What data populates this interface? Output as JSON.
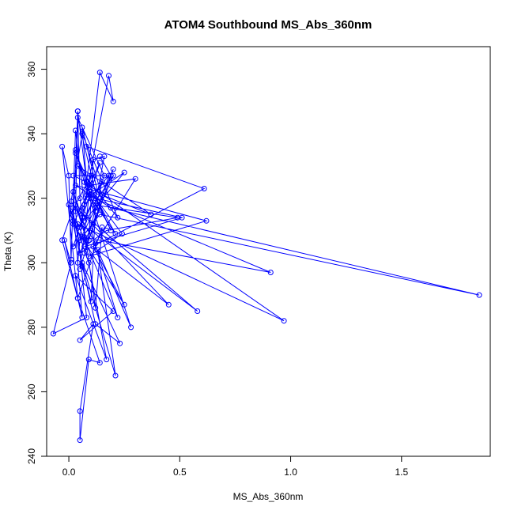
{
  "chart_data": {
    "type": "line",
    "title": "ATOM4 Southbound MS_Abs_360nm",
    "xlabel": "MS_Abs_360nm",
    "ylabel": "Theta (K)",
    "xlim": [
      -0.1,
      1.9
    ],
    "ylim": [
      240,
      367
    ],
    "x_ticks": [
      0.0,
      0.5,
      1.0,
      1.5
    ],
    "x_tick_labels": [
      "0.0",
      "0.5",
      "1.0",
      "1.5"
    ],
    "y_ticks": [
      240,
      260,
      280,
      300,
      320,
      340,
      360
    ],
    "y_tick_labels": [
      "240",
      "260",
      "280",
      "300",
      "320",
      "340",
      "360"
    ],
    "grid": false,
    "series": [
      {
        "color": "#0000ff",
        "marker": "open-circle",
        "x": [
          0.04,
          0.06,
          0.02,
          0.08,
          0.03,
          0.1,
          0.05,
          0.15,
          0.07,
          0.2,
          0.12,
          0.03,
          0.09,
          0.05,
          0.18,
          0.06,
          0.11,
          0.02,
          0.14,
          0.08,
          0.21,
          0.13,
          0.04,
          0.16,
          0.07,
          0.25,
          0.1,
          0.03,
          0.19,
          0.09,
          0.3,
          0.12,
          0.01,
          0.06,
          0.22,
          0.04,
          0.37,
          0.15,
          0.08,
          0.61,
          0.05,
          0.2,
          0.11,
          0.49,
          0.17,
          0.07,
          0.51,
          0.12,
          0.24,
          0.09,
          0.62,
          0.03,
          0.19,
          1.85,
          0.14,
          0.06,
          0.91,
          0.08,
          0.02,
          0.25,
          0.11,
          0.45,
          0.05,
          0.58,
          0.1,
          0.22,
          0.04,
          0.97,
          0.07,
          0.28,
          0.13,
          0.21,
          0.06,
          0.23,
          0.12,
          0.0,
          0.09,
          0.17,
          0.03,
          0.2,
          0.05,
          0.11,
          0.05,
          0.05,
          0.09,
          0.14,
          0.04,
          -0.03,
          0.02,
          0.06,
          -0.02,
          0.01,
          -0.07,
          0.08,
          0.03,
          0.04,
          0.05,
          0.12,
          0.15,
          0.04,
          -0.03,
          0.0,
          0.01,
          0.03,
          0.07,
          0.18,
          0.2,
          0.14,
          0.08,
          0.04,
          0.02,
          0.03,
          0.06,
          0.1,
          0.12,
          0.05,
          0.07,
          0.09,
          0.11,
          0.16,
          0.13,
          0.06,
          0.08,
          0.02,
          0.19,
          0.14
        ],
        "y": [
          300,
          314,
          322,
          307,
          318,
          327,
          311,
          325,
          303,
          329,
          316,
          335,
          320,
          298,
          327,
          317,
          312,
          305,
          331,
          322,
          309,
          319,
          345,
          327,
          313,
          328,
          321,
          334,
          310,
          324,
          326,
          306,
          319,
          340,
          314,
          330,
          315,
          321,
          336,
          323,
          303,
          327,
          318,
          314,
          310,
          305,
          314,
          320,
          309,
          302,
          313,
          324,
          317,
          290,
          315,
          308,
          297,
          321,
          312,
          287,
          305,
          287,
          316,
          285,
          310,
          283,
          312,
          282,
          325,
          280,
          304,
          265,
          300,
          275,
          281,
          318,
          300,
          270,
          296,
          285,
          276,
          281,
          254,
          245,
          270,
          269,
          289,
          307,
          317,
          283,
          307,
          300,
          278,
          283,
          316,
          347,
          320,
          286,
          311,
          289,
          336,
          327,
          301,
          341,
          318,
          358,
          350,
          359,
          325,
          347,
          313,
          312,
          299,
          288,
          317,
          307,
          308,
          307,
          332,
          333,
          322,
          342,
          325,
          327,
          327,
          333
        ]
      }
    ]
  }
}
